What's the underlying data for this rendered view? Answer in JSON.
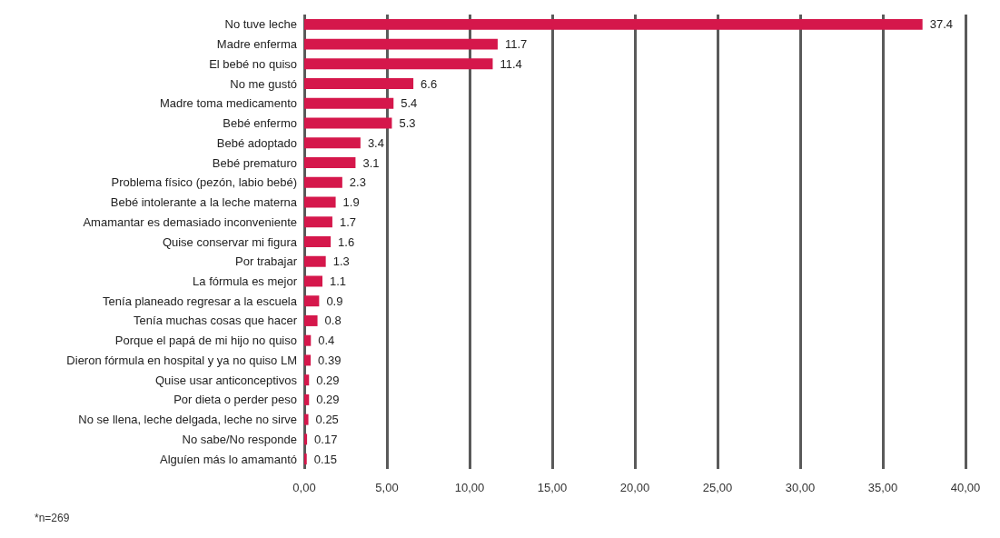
{
  "chart_data": {
    "type": "bar",
    "orientation": "horizontal",
    "categories": [
      "No tuve leche",
      "Madre enferma",
      "El bebé no quiso",
      "No me gustó",
      "Madre toma medicamento",
      "Bebé enfermo",
      "Bebé adoptado",
      "Bebé prematuro",
      "Problema físico (pezón, labio bebé)",
      "Bebé intolerante a la leche materna",
      "Amamantar es demasiado inconveniente",
      "Quise conservar mi figura",
      "Por trabajar",
      "La fórmula es mejor",
      "Tenía planeado regresar a la escuela",
      "Tenía muchas cosas que hacer",
      "Porque el papá de mi hijo no quiso",
      "Dieron fórmula en hospital y ya no quiso LM",
      "Quise usar anticonceptivos",
      "Por dieta o perder peso",
      "No se llena, leche delgada, leche no sirve",
      "No sabe/No responde",
      "Alguíen más lo amamantó"
    ],
    "values": [
      37.4,
      11.7,
      11.4,
      6.6,
      5.4,
      5.3,
      3.4,
      3.1,
      2.3,
      1.9,
      1.7,
      1.6,
      1.3,
      1.1,
      0.9,
      0.8,
      0.4,
      0.39,
      0.29,
      0.29,
      0.25,
      0.17,
      0.15
    ],
    "color": "#d5174b",
    "xlim": [
      0,
      40
    ],
    "xticks": [
      {
        "value": 0,
        "label": "0,00"
      },
      {
        "value": 5,
        "label": "5,00"
      },
      {
        "value": 10,
        "label": "10,00"
      },
      {
        "value": 15,
        "label": "15,00"
      },
      {
        "value": 20,
        "label": "20,00"
      },
      {
        "value": 25,
        "label": "25,00"
      },
      {
        "value": 30,
        "label": "30,00"
      },
      {
        "value": 35,
        "label": "35,00"
      },
      {
        "value": 40,
        "label": "40,00"
      }
    ],
    "grid": "x",
    "data_labels": true,
    "annotations": [
      "*n=269"
    ]
  }
}
